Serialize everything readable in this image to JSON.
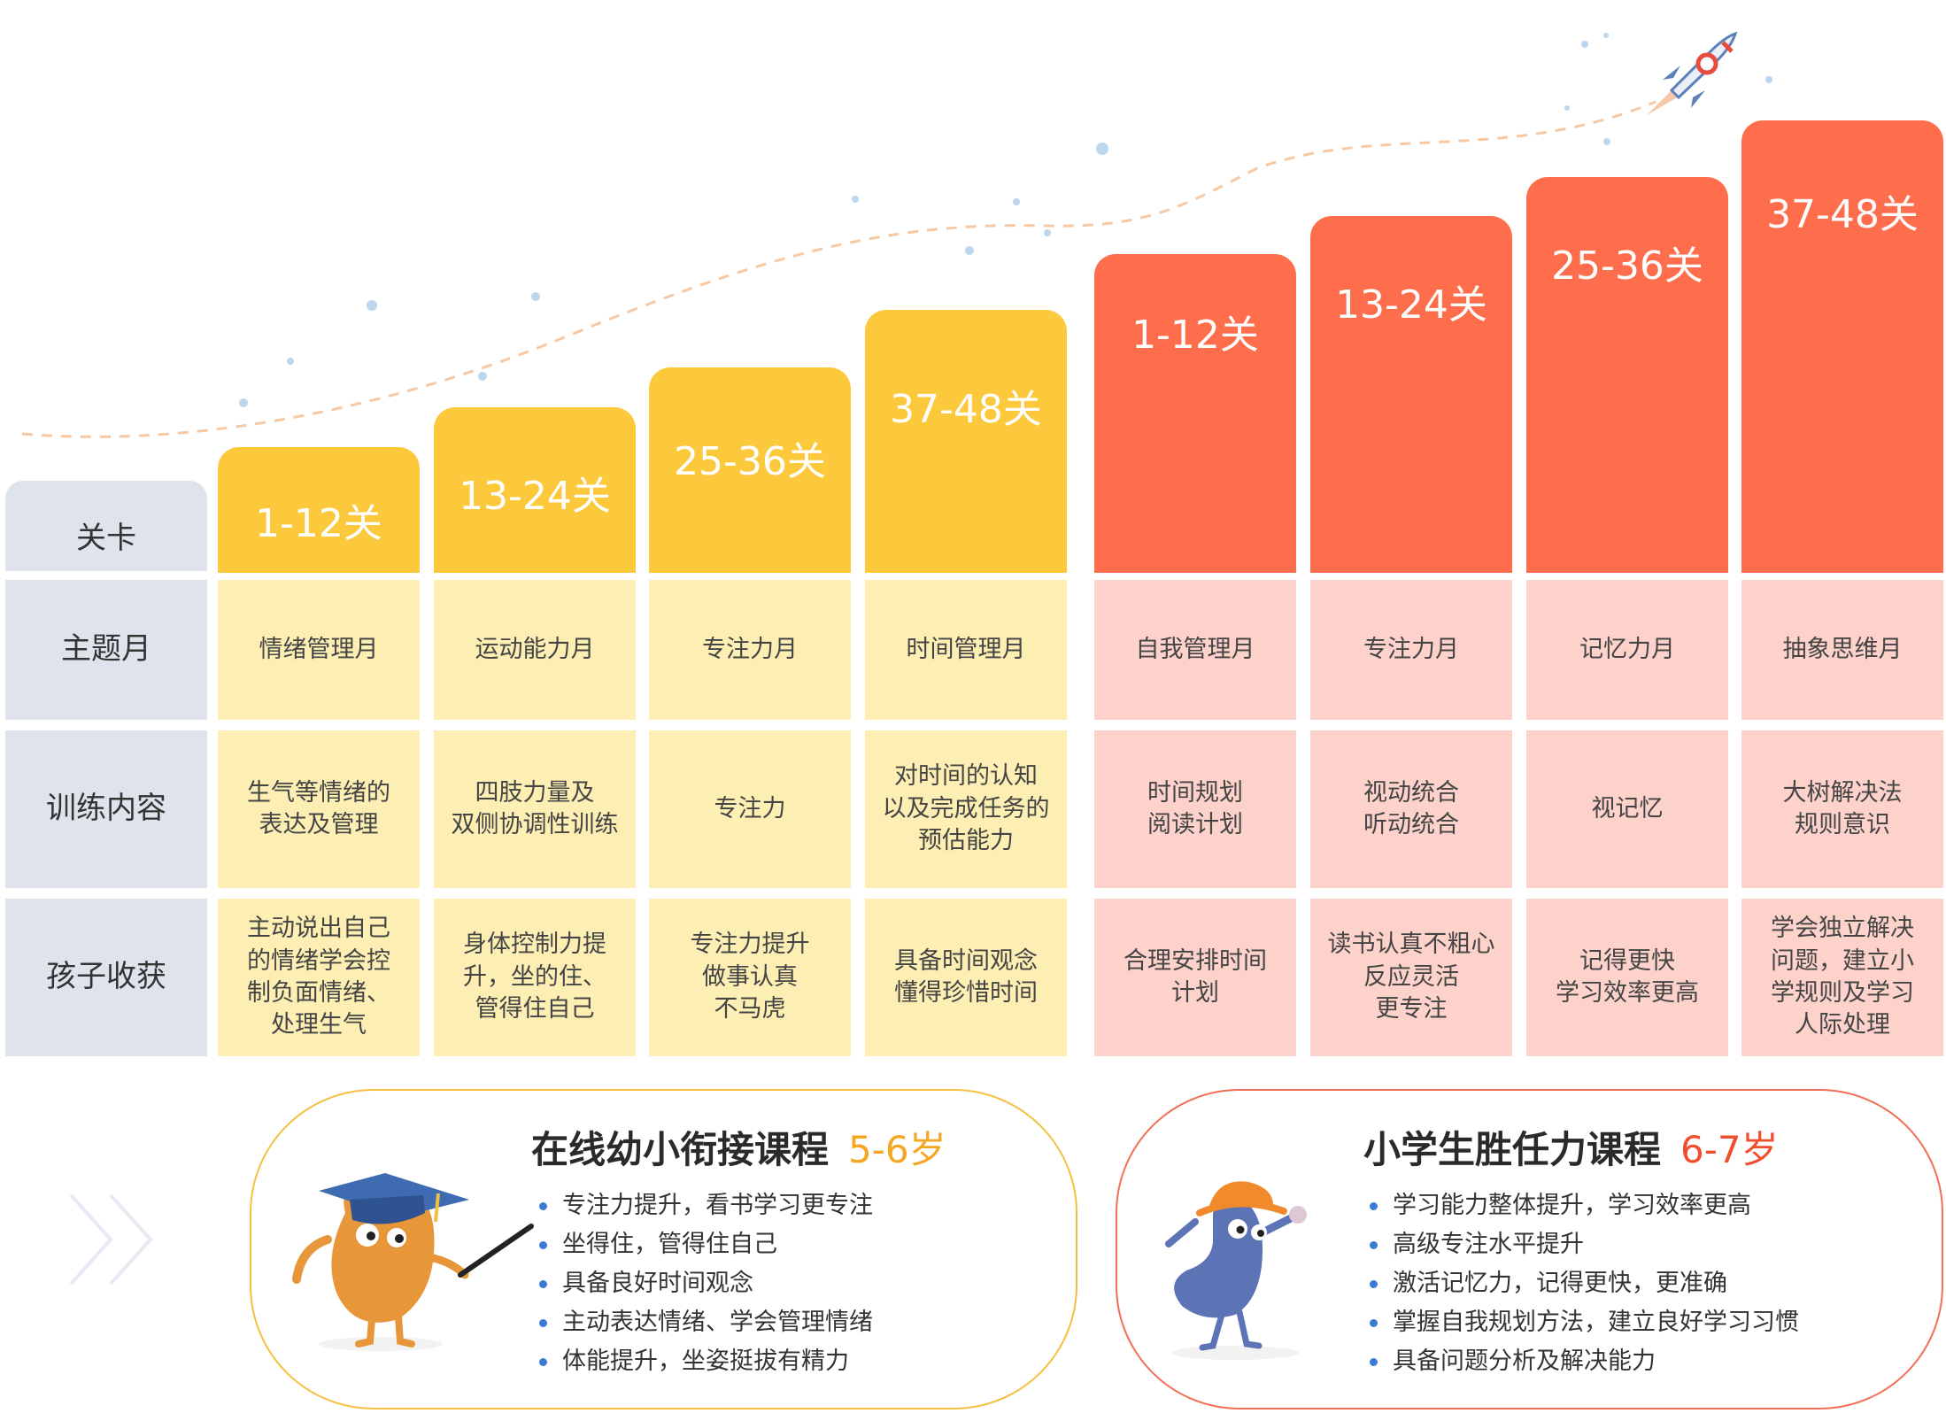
{
  "row_labels": {
    "level": "关卡",
    "theme": "主题月",
    "training": "训练内容",
    "gains": "孩子收获"
  },
  "colors": {
    "yellow_header": "#fcc83c",
    "yellow_cell": "#fdefb4",
    "red_header": "#fe6e4d",
    "red_cell": "#fdd2ca",
    "label_bg": "#dfe3ec",
    "accent_orange": "#f5a623",
    "accent_red": "#f04e2e",
    "bullet_blue": "#3a7bd5"
  },
  "kindergarten_columns": [
    {
      "level": "1-12关",
      "theme": "情绪管理月",
      "training": "生气等情绪的\n表达及管理",
      "gains": "主动说出自己\n的情绪学会控\n制负面情绪、\n处理生气"
    },
    {
      "level": "13-24关",
      "theme": "运动能力月",
      "training": "四肢力量及\n双侧协调性训练",
      "gains": "身体控制力提\n升，坐的住、\n管得住自己"
    },
    {
      "level": "25-36关",
      "theme": "专注力月",
      "training": "专注力",
      "gains": "专注力提升\n做事认真\n不马虎"
    },
    {
      "level": "37-48关",
      "theme": "时间管理月",
      "training": "对时间的认知\n以及完成任务的\n预估能力",
      "gains": "具备时间观念\n懂得珍惜时间"
    }
  ],
  "primary_columns": [
    {
      "level": "1-12关",
      "theme": "自我管理月",
      "training": "时间规划\n阅读计划",
      "gains": "合理安排时间\n计划"
    },
    {
      "level": "13-24关",
      "theme": "专注力月",
      "training": "视动统合\n听动统合",
      "gains": "读书认真不粗心\n反应灵活\n更专注"
    },
    {
      "level": "25-36关",
      "theme": "记忆力月",
      "training": "视记忆",
      "gains": "记得更快\n学习效率更高"
    },
    {
      "level": "37-48关",
      "theme": "抽象思维月",
      "training": "大树解决法\n规则意识",
      "gains": "学会独立解决\n问题，建立小\n学规则及学习\n人际处理"
    }
  ],
  "course_kindergarten": {
    "title": "在线幼小衔接课程",
    "age": "5-6岁",
    "bullets": [
      "专注力提升，看书学习更专注",
      "坐得住，管得住自己",
      "具备良好时间观念",
      "主动表达情绪、学会管理情绪",
      "体能提升，坐姿挺拔有精力"
    ]
  },
  "course_primary": {
    "title": "小学生胜任力课程",
    "age": "6-7岁",
    "bullets": [
      "学习能力整体提升，学习效率更高",
      "高级专注水平提升",
      "激活记忆力，记得更快，更准确",
      "掌握自我规划方法，建立良好学习习惯",
      "具备问题分析及解决能力"
    ]
  },
  "icons": [
    "rocket-icon",
    "sparkle-dot-icon",
    "chevron-right-icon",
    "graduate-mascot-icon",
    "hat-mascot-icon"
  ]
}
